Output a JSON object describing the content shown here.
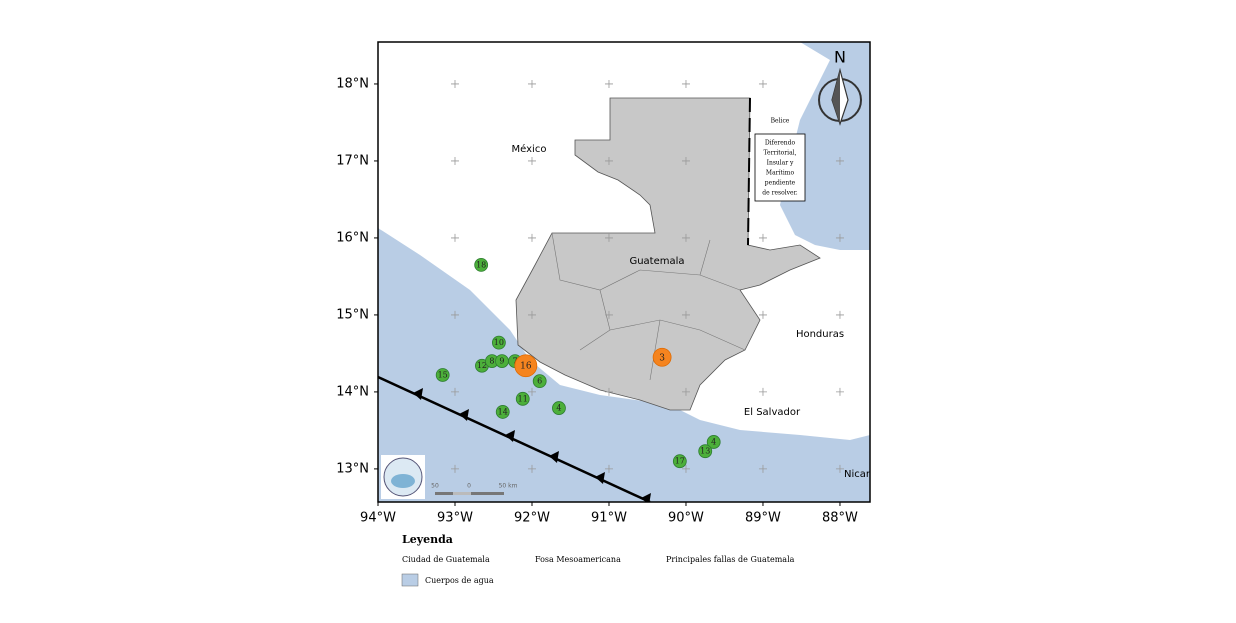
{
  "map": {
    "xlim": [
      -94,
      -87.61
    ],
    "ylim": [
      12.57,
      18.545
    ],
    "xticks": [
      {
        "value": -94,
        "label": "94°W"
      },
      {
        "value": -93,
        "label": "93°W"
      },
      {
        "value": -92,
        "label": "92°W"
      },
      {
        "value": -91,
        "label": "91°W"
      },
      {
        "value": -90,
        "label": "90°W"
      },
      {
        "value": -89,
        "label": "89°W"
      },
      {
        "value": -88,
        "label": "88°W"
      }
    ],
    "yticks": [
      {
        "value": 13,
        "label": "13°N"
      },
      {
        "value": 14,
        "label": "14°N"
      },
      {
        "value": 15,
        "label": "15°N"
      },
      {
        "value": 16,
        "label": "16°N"
      },
      {
        "value": 17,
        "label": "17°N"
      },
      {
        "value": 18,
        "label": "18°N"
      }
    ],
    "countries": {
      "mexico": "México",
      "guatemala": "Guatemala",
      "honduras": "Honduras",
      "el_salvador": "El Salvador",
      "belize": "Belice",
      "nicaragua": "Nicar"
    },
    "note": [
      "Diferendo",
      "Territorial,",
      "Insular y",
      "Marítimo",
      "pendiente",
      "de resolver."
    ],
    "compass": "N",
    "scale": [
      "50",
      "0",
      "50 km"
    ],
    "events": [
      {
        "label": "18",
        "lon": -92.66,
        "lat": 15.65,
        "color": "#4caf3a"
      },
      {
        "label": "10",
        "lon": -92.43,
        "lat": 14.64,
        "color": "#4caf3a"
      },
      {
        "label": "12",
        "lon": -92.65,
        "lat": 14.34,
        "color": "#4caf3a"
      },
      {
        "label": "8",
        "lon": -92.52,
        "lat": 14.4,
        "color": "#4caf3a"
      },
      {
        "label": "9",
        "lon": -92.39,
        "lat": 14.4,
        "color": "#4caf3a"
      },
      {
        "label": "7",
        "lon": -92.22,
        "lat": 14.4,
        "color": "#4caf3a"
      },
      {
        "label": "15",
        "lon": -93.16,
        "lat": 14.22,
        "color": "#4caf3a"
      },
      {
        "label": "6",
        "lon": -91.9,
        "lat": 14.14,
        "color": "#4caf3a"
      },
      {
        "label": "11",
        "lon": -92.12,
        "lat": 13.91,
        "color": "#4caf3a"
      },
      {
        "label": "14",
        "lon": -92.38,
        "lat": 13.74,
        "color": "#4caf3a"
      },
      {
        "label": "4",
        "lon": -91.65,
        "lat": 13.79,
        "color": "#4caf3a"
      },
      {
        "label": "16",
        "lon": -92.08,
        "lat": 14.34,
        "color": "#f5841f"
      },
      {
        "label": "3",
        "lon": -90.31,
        "lat": 14.45,
        "color": "#f5841f"
      },
      {
        "label": "4",
        "lon": -89.64,
        "lat": 13.35,
        "color": "#4caf3a"
      },
      {
        "label": "13",
        "lon": -89.75,
        "lat": 13.23,
        "color": "#4caf3a"
      },
      {
        "label": "17",
        "lon": -90.08,
        "lat": 13.1,
        "color": "#4caf3a"
      }
    ]
  },
  "legend": {
    "title": "Leyenda",
    "items": [
      "Ciudad de Guatemala",
      "Fosa Mesoamericana",
      "Principales fallas de Guatemala",
      "Cuerpos de agua"
    ]
  }
}
